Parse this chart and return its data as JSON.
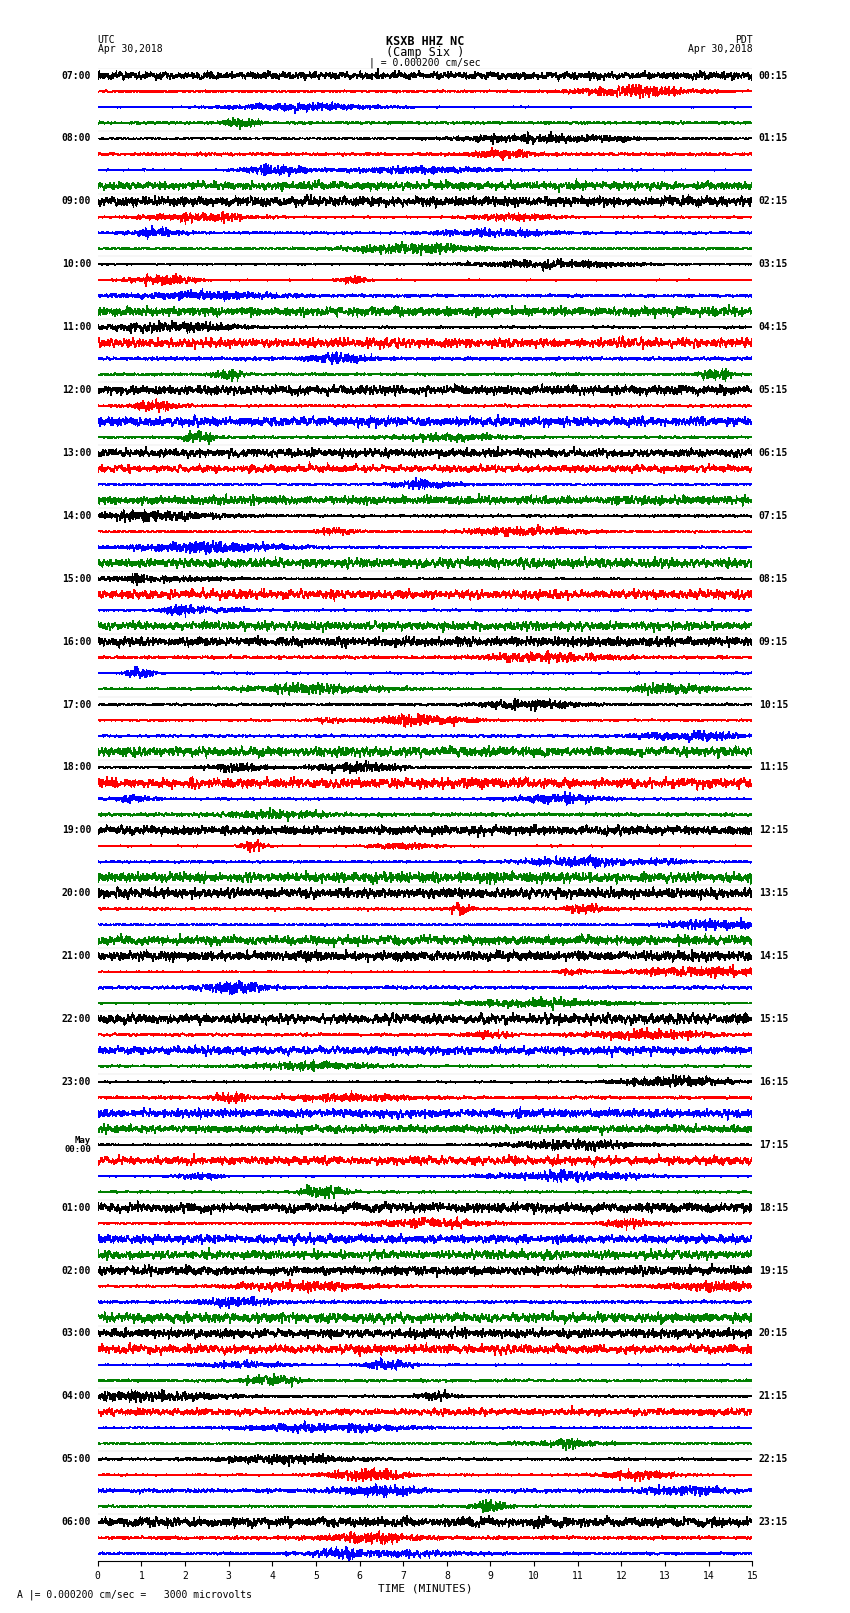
{
  "title": "KSXB HHZ NC",
  "subtitle": "(Camp Six )",
  "left_header_line1": "UTC",
  "left_header_line2": "Apr 30,2018",
  "right_header_line1": "PDT",
  "right_header_line2": "Apr 30,2018",
  "scale_text": "| = 0.000200 cm/sec",
  "xlabel": "TIME (MINUTES)",
  "bottom_note": "A |= 0.000200 cm/sec =   3000 microvolts",
  "xlim": [
    0,
    15
  ],
  "xticks": [
    0,
    1,
    2,
    3,
    4,
    5,
    6,
    7,
    8,
    9,
    10,
    11,
    12,
    13,
    14,
    15
  ],
  "left_times": [
    "07:00",
    "",
    "",
    "",
    "08:00",
    "",
    "",
    "",
    "09:00",
    "",
    "",
    "",
    "10:00",
    "",
    "",
    "",
    "11:00",
    "",
    "",
    "",
    "12:00",
    "",
    "",
    "",
    "13:00",
    "",
    "",
    "",
    "14:00",
    "",
    "",
    "",
    "15:00",
    "",
    "",
    "",
    "16:00",
    "",
    "",
    "",
    "17:00",
    "",
    "",
    "",
    "18:00",
    "",
    "",
    "",
    "19:00",
    "",
    "",
    "",
    "20:00",
    "",
    "",
    "",
    "21:00",
    "",
    "",
    "",
    "22:00",
    "",
    "",
    "",
    "23:00",
    "",
    "",
    "",
    "May\n00:00",
    "",
    "",
    "",
    "01:00",
    "",
    "",
    "",
    "02:00",
    "",
    "",
    "",
    "03:00",
    "",
    "",
    "",
    "04:00",
    "",
    "",
    "",
    "05:00",
    "",
    "",
    "",
    "06:00",
    "",
    ""
  ],
  "right_times": [
    "00:15",
    "",
    "",
    "",
    "01:15",
    "",
    "",
    "",
    "02:15",
    "",
    "",
    "",
    "03:15",
    "",
    "",
    "",
    "04:15",
    "",
    "",
    "",
    "05:15",
    "",
    "",
    "",
    "06:15",
    "",
    "",
    "",
    "07:15",
    "",
    "",
    "",
    "08:15",
    "",
    "",
    "",
    "09:15",
    "",
    "",
    "",
    "10:15",
    "",
    "",
    "",
    "11:15",
    "",
    "",
    "",
    "12:15",
    "",
    "",
    "",
    "13:15",
    "",
    "",
    "",
    "14:15",
    "",
    "",
    "",
    "15:15",
    "",
    "",
    "",
    "16:15",
    "",
    "",
    "",
    "17:15",
    "",
    "",
    "",
    "18:15",
    "",
    "",
    "",
    "19:15",
    "",
    "",
    "",
    "20:15",
    "",
    "",
    "",
    "21:15",
    "",
    "",
    "",
    "22:15",
    "",
    "",
    "",
    "23:15",
    "",
    ""
  ],
  "colors": [
    "black",
    "red",
    "blue",
    "green"
  ],
  "trace_amplitude": 0.42,
  "bg_color": "white",
  "trace_linewidth": 0.5,
  "font_size": 7,
  "title_font_size": 8.5,
  "n_points": 2000
}
